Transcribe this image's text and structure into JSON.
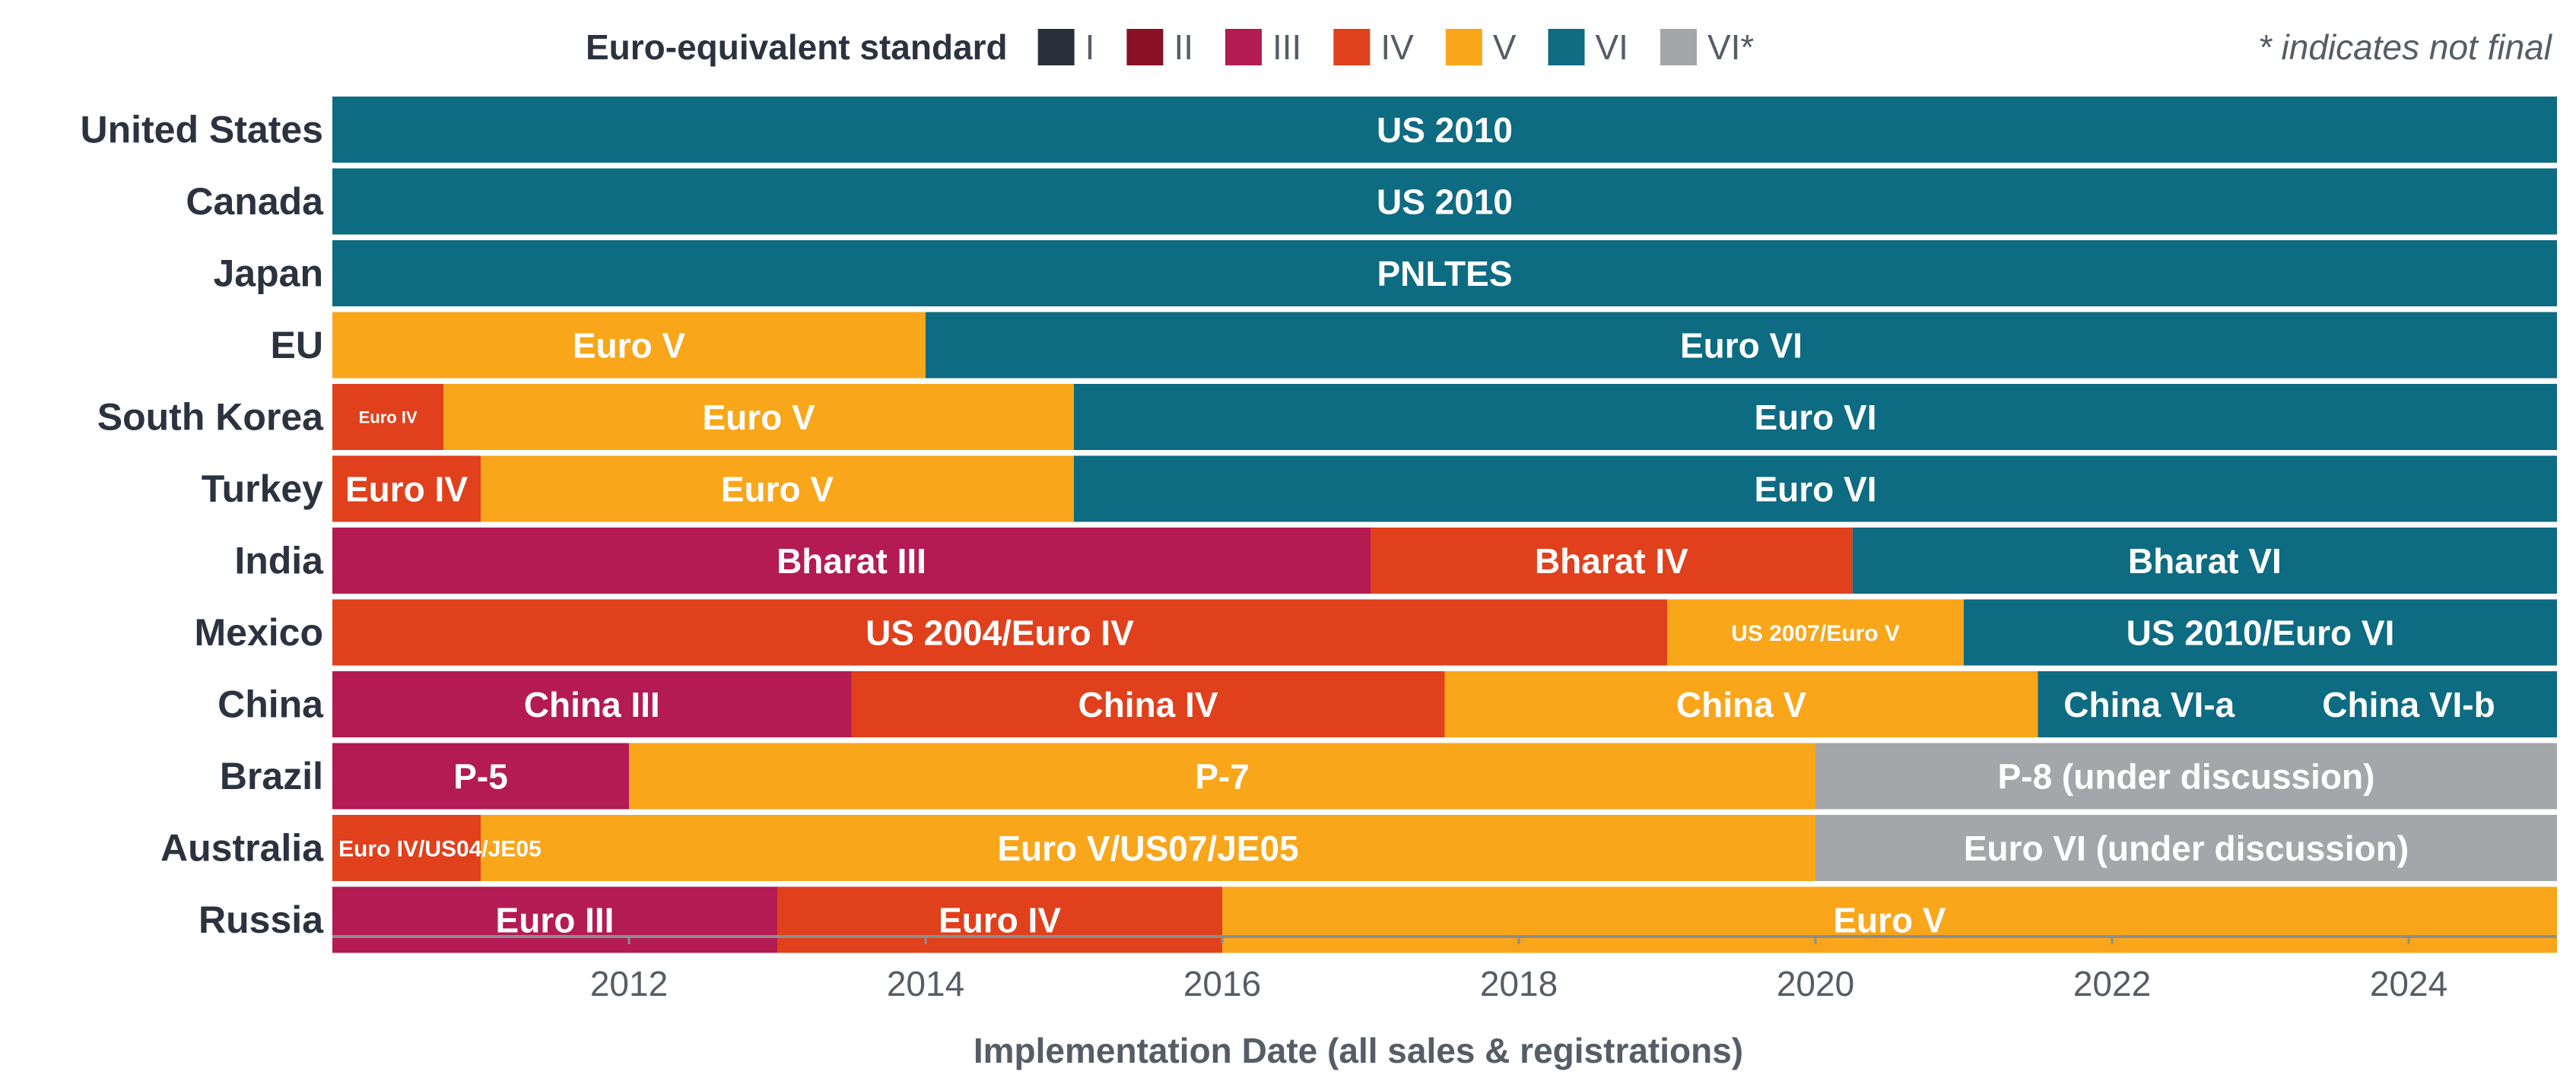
{
  "chart_data": {
    "type": "bar",
    "subtype": "horizontal-timeline",
    "xlabel": "Implementation Date (all sales & registrations)",
    "xlim": [
      2010.0,
      2025.0
    ],
    "xticks": [
      2012,
      2014,
      2016,
      2018,
      2020,
      2022,
      2024
    ],
    "legend": {
      "title": "Euro-equivalent standard",
      "note": "* indicates not final",
      "entries": [
        {
          "key": "I",
          "label": "I",
          "color": "#26313b"
        },
        {
          "key": "II",
          "label": "II",
          "color": "#8a1025"
        },
        {
          "key": "III",
          "label": "III",
          "color": "#b31b52"
        },
        {
          "key": "IV",
          "label": "IV",
          "color": "#e0401c"
        },
        {
          "key": "V",
          "label": "V",
          "color": "#f9a61a"
        },
        {
          "key": "VI",
          "label": "VI",
          "color": "#0d6b82"
        },
        {
          "key": "VI*",
          "label": "VI*",
          "color": "#a4a6a9"
        }
      ]
    },
    "countries": [
      {
        "name": "United States",
        "segments": [
          {
            "label": "US 2010",
            "standard": "VI",
            "start": 2010.0,
            "end": 2025.0
          }
        ]
      },
      {
        "name": "Canada",
        "segments": [
          {
            "label": "US 2010",
            "standard": "VI",
            "start": 2010.0,
            "end": 2025.0
          }
        ]
      },
      {
        "name": "Japan",
        "segments": [
          {
            "label": "PNLTES",
            "standard": "VI",
            "start": 2010.0,
            "end": 2025.0
          }
        ]
      },
      {
        "name": "EU",
        "segments": [
          {
            "label": "Euro V",
            "standard": "V",
            "start": 2010.0,
            "end": 2014.0
          },
          {
            "label": "Euro VI",
            "standard": "VI",
            "start": 2014.0,
            "end": 2025.0
          }
        ]
      },
      {
        "name": "South Korea",
        "segments": [
          {
            "label": "Euro IV",
            "standard": "IV",
            "start": 2010.0,
            "end": 2010.75,
            "small": true
          },
          {
            "label": "Euro V",
            "standard": "V",
            "start": 2010.75,
            "end": 2015.0
          },
          {
            "label": "Euro VI",
            "standard": "VI",
            "start": 2015.0,
            "end": 2025.0
          }
        ]
      },
      {
        "name": "Turkey",
        "segments": [
          {
            "label": "Euro IV",
            "standard": "IV",
            "start": 2010.0,
            "end": 2011.0
          },
          {
            "label": "Euro V",
            "standard": "V",
            "start": 2011.0,
            "end": 2015.0
          },
          {
            "label": "Euro VI",
            "standard": "VI",
            "start": 2015.0,
            "end": 2025.0
          }
        ]
      },
      {
        "name": "India",
        "segments": [
          {
            "label": "Bharat III",
            "standard": "III",
            "start": 2010.0,
            "end": 2017.0
          },
          {
            "label": "Bharat IV",
            "standard": "IV",
            "start": 2017.0,
            "end": 2020.25
          },
          {
            "label": "Bharat VI",
            "standard": "VI",
            "start": 2020.25,
            "end": 2025.0
          }
        ]
      },
      {
        "name": "Mexico",
        "segments": [
          {
            "label": "US 2004/Euro IV",
            "standard": "IV",
            "start": 2010.0,
            "end": 2019.0
          },
          {
            "label": "US 2007/Euro V",
            "standard": "V",
            "start": 2019.0,
            "end": 2021.0,
            "small": true
          },
          {
            "label": "US 2010/Euro VI",
            "standard": "VI",
            "start": 2021.0,
            "end": 2025.0
          }
        ]
      },
      {
        "name": "China",
        "segments": [
          {
            "label": "China III",
            "standard": "III",
            "start": 2010.0,
            "end": 2013.5
          },
          {
            "label": "China IV",
            "standard": "IV",
            "start": 2013.5,
            "end": 2017.5
          },
          {
            "label": "China V",
            "standard": "V",
            "start": 2017.5,
            "end": 2021.5
          },
          {
            "label": "China VI-a",
            "standard": "VI",
            "start": 2021.5,
            "end": 2023.0
          },
          {
            "label": "China VI-b",
            "standard": "VI",
            "start": 2023.0,
            "end": 2025.0
          }
        ]
      },
      {
        "name": "Brazil",
        "segments": [
          {
            "label": "P-5",
            "standard": "III",
            "start": 2010.0,
            "end": 2012.0
          },
          {
            "label": "P-7",
            "standard": "V",
            "start": 2012.0,
            "end": 2020.0
          },
          {
            "label": "P-8 (under discussion)",
            "standard": "VI*",
            "start": 2020.0,
            "end": 2025.0
          }
        ]
      },
      {
        "name": "Australia",
        "segments": [
          {
            "label": "Euro IV/US04/JE05",
            "standard": "IV",
            "start": 2010.0,
            "end": 2011.0,
            "small": true,
            "overflow": true
          },
          {
            "label": "Euro V/US07/JE05",
            "standard": "V",
            "start": 2011.0,
            "end": 2020.0
          },
          {
            "label": "Euro VI (under discussion)",
            "standard": "VI*",
            "start": 2020.0,
            "end": 2025.0
          }
        ]
      },
      {
        "name": "Russia",
        "segments": [
          {
            "label": "Euro III",
            "standard": "III",
            "start": 2010.0,
            "end": 2013.0
          },
          {
            "label": "Euro IV",
            "standard": "IV",
            "start": 2013.0,
            "end": 2016.0
          },
          {
            "label": "Euro V",
            "standard": "V",
            "start": 2016.0,
            "end": 2025.0
          }
        ]
      }
    ]
  }
}
